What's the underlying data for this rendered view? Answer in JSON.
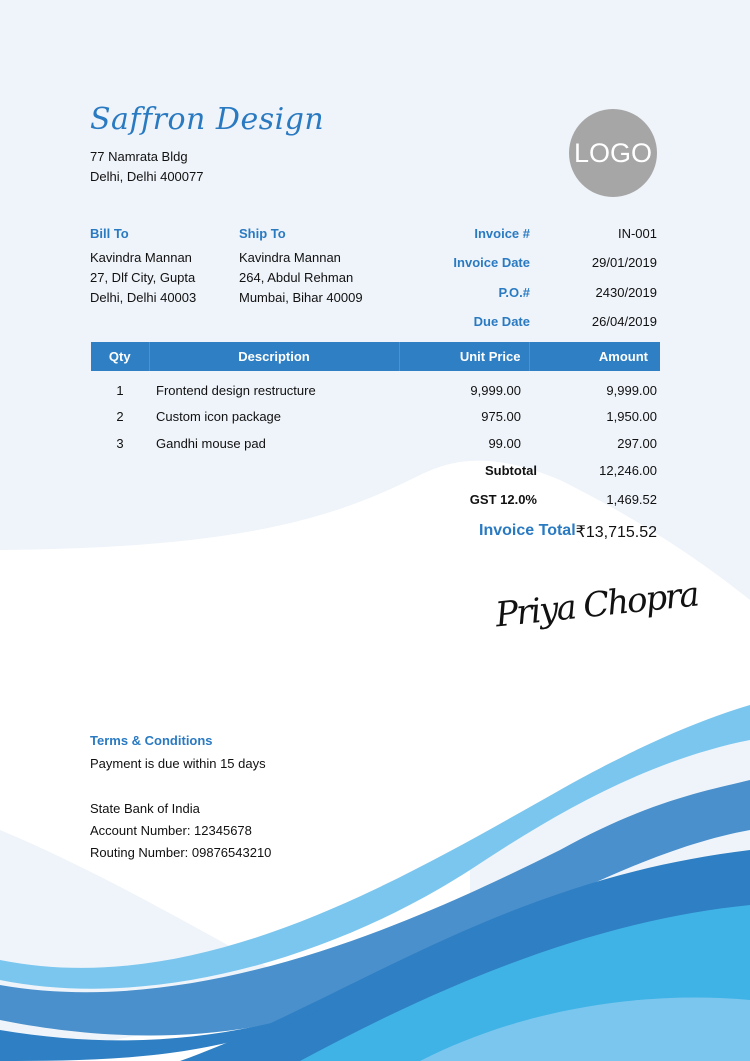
{
  "company": {
    "name": "Saffron Design",
    "address1": "77 Namrata Bldg",
    "address2": "Delhi, Delhi 400077",
    "logo_text": "LOGO"
  },
  "bill_to": {
    "label": "Bill To",
    "name": "Kavindra Mannan",
    "line1": "27, Dlf City, Gupta",
    "line2": "Delhi, Delhi 40003"
  },
  "ship_to": {
    "label": "Ship To",
    "name": "Kavindra Mannan",
    "line1": "264, Abdul Rehman",
    "line2": "Mumbai, Bihar 40009"
  },
  "meta": [
    {
      "label": "Invoice #",
      "value": "IN-001"
    },
    {
      "label": "Invoice Date",
      "value": "29/01/2019"
    },
    {
      "label": "P.O.#",
      "value": "2430/2019"
    },
    {
      "label": "Due Date",
      "value": "26/04/2019"
    }
  ],
  "table": {
    "headers": [
      "Qty",
      "Description",
      "Unit Price",
      "Amount"
    ],
    "rows": [
      [
        "1",
        "Frontend design restructure",
        "9,999.00",
        "9,999.00"
      ],
      [
        "2",
        "Custom icon package",
        "975.00",
        "1,950.00"
      ],
      [
        "3",
        "Gandhi mouse pad",
        "99.00",
        "297.00"
      ]
    ]
  },
  "totals": {
    "subtotal_label": "Subtotal",
    "subtotal": "12,246.00",
    "tax_label": "GST 12.0%",
    "tax": "1,469.52",
    "total_label": "Invoice Total",
    "total": "₹13,715.52"
  },
  "signature": "Priya Chopra",
  "terms": {
    "label": "Terms & Conditions",
    "text": "Payment is due within 15 days"
  },
  "bank": {
    "name": "State Bank of India",
    "account": "Account Number: 12345678",
    "routing": "Routing Number: 09876543210"
  },
  "colors": {
    "accent": "#2a7ac2",
    "background": "#eff4fa"
  }
}
